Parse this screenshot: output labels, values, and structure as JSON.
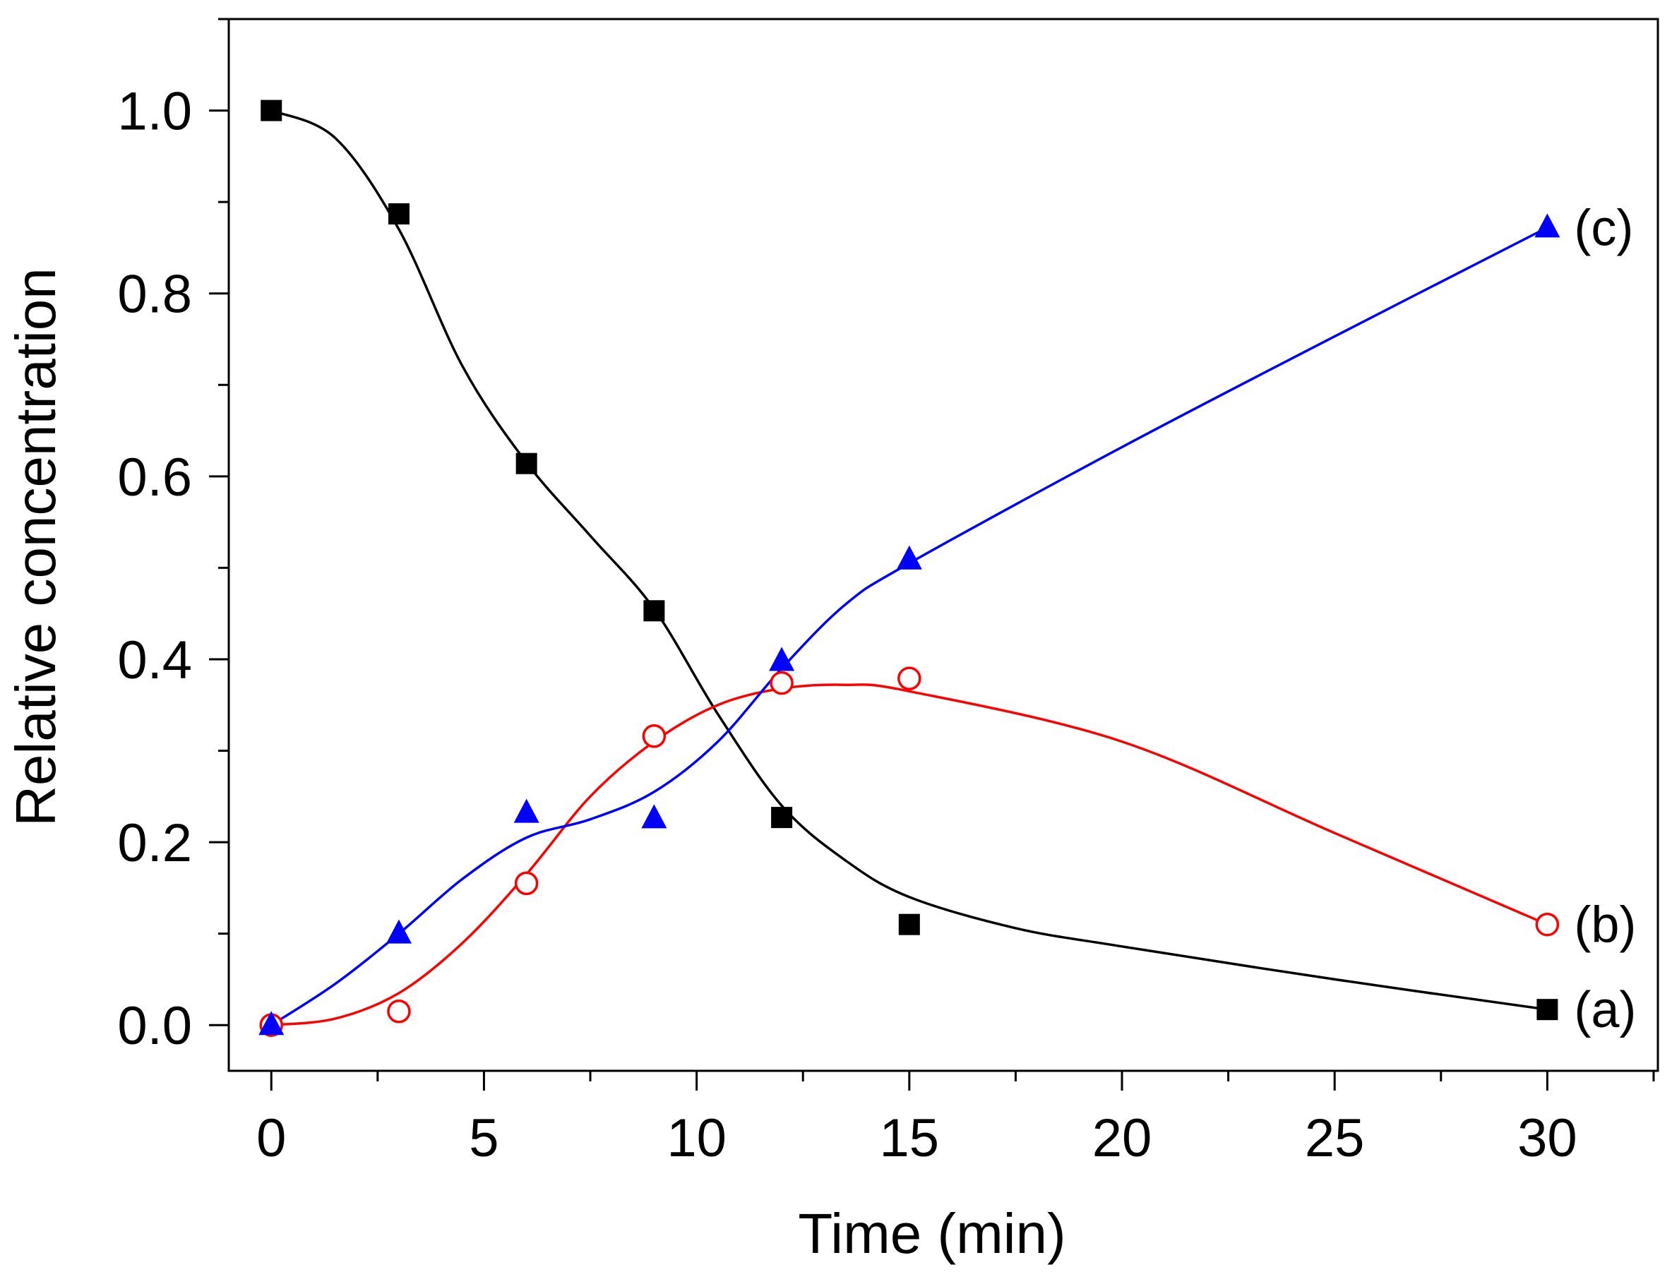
{
  "chart_data": {
    "type": "scatter",
    "title": "",
    "xlabel": "Time (min)",
    "ylabel": "Relative concentration",
    "xlim": [
      -1,
      32.6
    ],
    "ylim": [
      -0.05,
      1.1
    ],
    "xticks": [
      0,
      5,
      10,
      15,
      20,
      25,
      30
    ],
    "xtick_labels": [
      "0",
      "5",
      "10",
      "15",
      "20",
      "25",
      "30"
    ],
    "yticks": [
      0.0,
      0.2,
      0.4,
      0.6,
      0.8,
      1.0
    ],
    "ytick_labels": [
      "0.0",
      "0.2",
      "0.4",
      "0.6",
      "0.8",
      "1.0"
    ],
    "grid": false,
    "series": [
      {
        "name": "(a)",
        "marker": "square-filled",
        "color": "#000000",
        "x": [
          0,
          3,
          6,
          9,
          12,
          15,
          30
        ],
        "values": [
          1.0,
          0.887,
          0.614,
          0.453,
          0.227,
          0.11,
          0.017
        ],
        "fit": [
          [
            0,
            1.0
          ],
          [
            1.5,
            0.97
          ],
          [
            3,
            0.87
          ],
          [
            4.5,
            0.72
          ],
          [
            6,
            0.615
          ],
          [
            7.5,
            0.535
          ],
          [
            9,
            0.455
          ],
          [
            10.5,
            0.34
          ],
          [
            12,
            0.24
          ],
          [
            13.5,
            0.18
          ],
          [
            15,
            0.14
          ],
          [
            17.5,
            0.106
          ],
          [
            20,
            0.086
          ],
          [
            25,
            0.05
          ],
          [
            30,
            0.017
          ]
        ]
      },
      {
        "name": "(b)",
        "marker": "circle-open",
        "color": "#ff0000",
        "x": [
          0,
          3,
          6,
          9,
          12,
          15,
          30
        ],
        "values": [
          0.0,
          0.015,
          0.155,
          0.316,
          0.374,
          0.379,
          0.11
        ],
        "fit": [
          [
            0,
            0.0
          ],
          [
            1.5,
            0.007
          ],
          [
            3,
            0.035
          ],
          [
            4.5,
            0.09
          ],
          [
            6,
            0.165
          ],
          [
            7.5,
            0.25
          ],
          [
            9,
            0.31
          ],
          [
            10.5,
            0.35
          ],
          [
            12,
            0.368
          ],
          [
            13.5,
            0.372
          ],
          [
            15,
            0.365
          ],
          [
            20,
            0.31
          ],
          [
            25,
            0.21
          ],
          [
            30,
            0.11
          ]
        ]
      },
      {
        "name": "(c)",
        "marker": "triangle-filled",
        "color": "#0000ff",
        "x": [
          0,
          3,
          6,
          9,
          12,
          15,
          30
        ],
        "values": [
          0.0,
          0.1,
          0.232,
          0.226,
          0.398,
          0.509,
          0.872
        ],
        "fit": [
          [
            0,
            0.0
          ],
          [
            1.5,
            0.045
          ],
          [
            3,
            0.1
          ],
          [
            4.5,
            0.16
          ],
          [
            6,
            0.205
          ],
          [
            7.5,
            0.225
          ],
          [
            9,
            0.255
          ],
          [
            10.5,
            0.31
          ],
          [
            12,
            0.39
          ],
          [
            13.5,
            0.46
          ],
          [
            15,
            0.505
          ],
          [
            20,
            0.632
          ],
          [
            25,
            0.753
          ],
          [
            30,
            0.872
          ]
        ]
      }
    ]
  }
}
